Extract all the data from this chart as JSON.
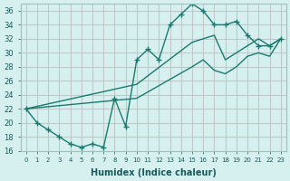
{
  "xlabel": "Humidex (Indice chaleur)",
  "ylabel": "",
  "background_color": "#d6f0f0",
  "grid_color": "#c0c8c8",
  "line_color": "#1a7a6e",
  "xlim": [
    -0.5,
    23.5
  ],
  "ylim": [
    16,
    37
  ],
  "yticks": [
    16,
    18,
    20,
    22,
    24,
    26,
    28,
    30,
    32,
    34,
    36
  ],
  "xticks": [
    0,
    1,
    2,
    3,
    4,
    5,
    6,
    7,
    8,
    9,
    10,
    11,
    12,
    13,
    14,
    15,
    16,
    17,
    18,
    19,
    20,
    21,
    22,
    23
  ],
  "line1_x": [
    0,
    1,
    2,
    3,
    4,
    5,
    6,
    7,
    8,
    9,
    10,
    11,
    12,
    13,
    14,
    15,
    16,
    17,
    18,
    19,
    20,
    21,
    22,
    23
  ],
  "line1_y": [
    22,
    20,
    19,
    18,
    17,
    16.5,
    17,
    16.5,
    23.5,
    19.5,
    29,
    30.5,
    29,
    34,
    35.5,
    37,
    36,
    34,
    34,
    34.5,
    32.5,
    31,
    31,
    32
  ],
  "line2_x": [
    0,
    10,
    15,
    16,
    17,
    18,
    19,
    20,
    21,
    22,
    23
  ],
  "line2_y": [
    22,
    25.5,
    31.5,
    32,
    32.5,
    29,
    30,
    31,
    32,
    31,
    32
  ],
  "line3_x": [
    0,
    10,
    15,
    16,
    17,
    18,
    19,
    20,
    21,
    22,
    23
  ],
  "line3_y": [
    22,
    23.5,
    28,
    29,
    27.5,
    27,
    28,
    29.5,
    30,
    29.5,
    32
  ]
}
